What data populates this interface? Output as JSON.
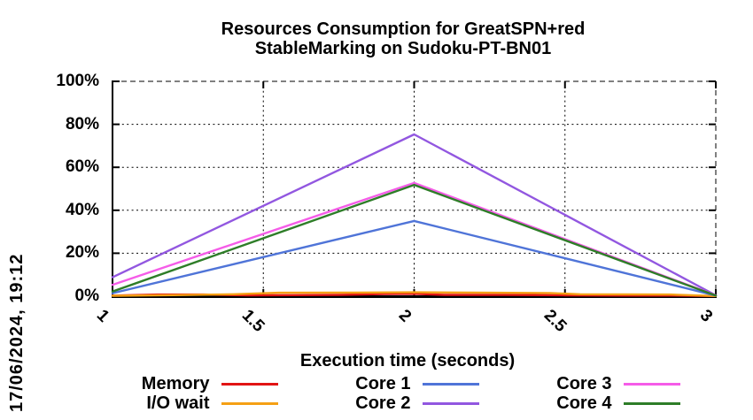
{
  "meta": {
    "datetime_label": "17/06/2024, 19:12"
  },
  "title": {
    "line1": "Resources Consumption for GreatSPN+red",
    "line2": "StableMarking on Sudoku-PT-BN01"
  },
  "chart_data": {
    "type": "line",
    "title": "Resources Consumption for GreatSPN+red StableMarking on Sudoku-PT-BN01",
    "xlabel": "Execution time (seconds)",
    "ylabel": "",
    "xlim": [
      1,
      3
    ],
    "ylim": [
      0,
      100
    ],
    "xticks": {
      "values": [
        1,
        1.5,
        2,
        2.5,
        3
      ],
      "labels": [
        "1",
        "1.5",
        "2",
        "2.5",
        "3"
      ]
    },
    "yticks": {
      "values": [
        0,
        20,
        40,
        60,
        80,
        100
      ],
      "labels": [
        "0%",
        "20%",
        "40%",
        "60%",
        "80%",
        "100%"
      ]
    },
    "grid": true,
    "legend_position": "bottom",
    "series": [
      {
        "name": "Memory",
        "color": "#e21414",
        "points": [
          [
            1,
            0.3
          ],
          [
            1.15,
            0.8
          ],
          [
            1.3,
            0.8
          ],
          [
            1.45,
            0.4
          ],
          [
            1.6,
            0.5
          ],
          [
            1.75,
            0.6
          ],
          [
            1.9,
            1.0
          ],
          [
            2.0,
            1.1
          ],
          [
            2.1,
            0.6
          ],
          [
            2.3,
            0.6
          ],
          [
            2.5,
            0.4
          ],
          [
            2.7,
            0.3
          ],
          [
            2.85,
            0.3
          ],
          [
            3,
            0.1
          ]
        ]
      },
      {
        "name": "I/O wait",
        "color": "#f5a014",
        "points": [
          [
            1,
            0.2
          ],
          [
            1.2,
            0.5
          ],
          [
            1.4,
            0.9
          ],
          [
            1.55,
            1.6
          ],
          [
            1.8,
            1.7
          ],
          [
            2.0,
            1.8
          ],
          [
            2.2,
            1.7
          ],
          [
            2.45,
            1.5
          ],
          [
            2.55,
            0.9
          ],
          [
            2.85,
            0.8
          ],
          [
            3,
            0.1
          ]
        ]
      },
      {
        "name": "Core 1",
        "color": "#4f74d8",
        "points": [
          [
            1,
            1.4
          ],
          [
            2,
            35.0
          ],
          [
            3,
            0.3
          ]
        ]
      },
      {
        "name": "Core 2",
        "color": "#9257e0",
        "points": [
          [
            1,
            8.8
          ],
          [
            2,
            75.3
          ],
          [
            3,
            0.4
          ]
        ]
      },
      {
        "name": "Core 3",
        "color": "#f55ce8",
        "points": [
          [
            1,
            5.3
          ],
          [
            2,
            52.7
          ],
          [
            3,
            0.4
          ]
        ]
      },
      {
        "name": "Core 4",
        "color": "#2e7d28",
        "points": [
          [
            1,
            2.2
          ],
          [
            2,
            51.8
          ],
          [
            3,
            0.3
          ]
        ]
      }
    ],
    "legend_columns": [
      [
        "Memory",
        "I/O wait"
      ],
      [
        "Core 1",
        "Core 2"
      ],
      [
        "Core 3",
        "Core 4"
      ]
    ]
  }
}
